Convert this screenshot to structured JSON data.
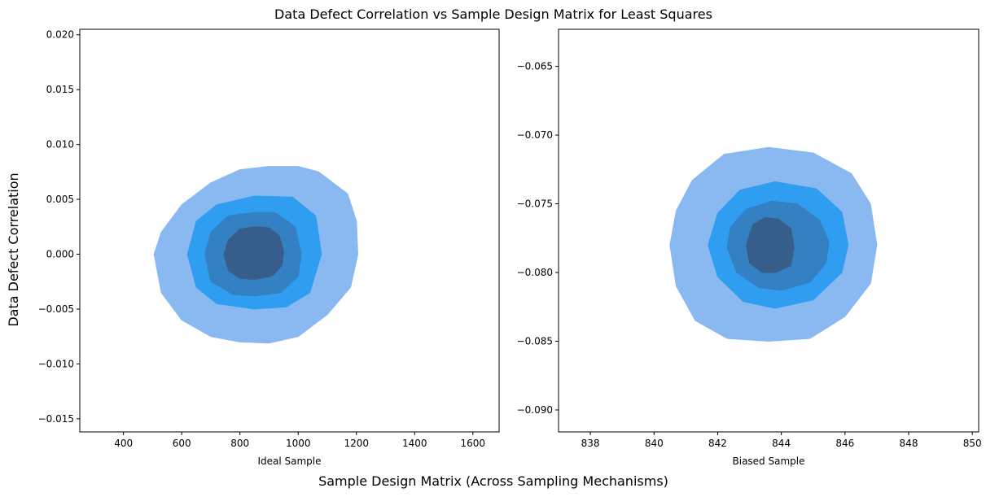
{
  "figure": {
    "suptitle": "Data Defect Correlation vs Sample Design Matrix for Least Squares",
    "supxlabel": "Sample Design Matrix (Across Sampling Mechanisms)",
    "supylabel": "Data Defect Correlation"
  },
  "chart_data": [
    {
      "type": "contour",
      "kind": "filled bivariate KDE",
      "xlabel": "Ideal Sample",
      "ylabel": "",
      "xlim": [
        250,
        1690
      ],
      "ylim": [
        -0.0162,
        0.0205
      ],
      "xticks": [
        400,
        600,
        800,
        1000,
        1200,
        1400,
        1600
      ],
      "xtick_labels": [
        "400",
        "600",
        "800",
        "1000",
        "1200",
        "1400",
        "1600"
      ],
      "yticks": [
        -0.015,
        -0.01,
        -0.005,
        0.0,
        0.005,
        0.01,
        0.015,
        0.02
      ],
      "ytick_labels": [
        "−0.015",
        "−0.010",
        "−0.005",
        "0.000",
        "0.005",
        "0.010",
        "0.015",
        "0.020"
      ],
      "grid": false,
      "levels": [
        {
          "color": "#8ab8f0",
          "x_range": [
            505,
            1205
          ],
          "y_range": [
            -0.0081,
            0.008
          ],
          "points": [
            [
              530,
              -0.0035
            ],
            [
              600,
              -0.006
            ],
            [
              700,
              -0.0075
            ],
            [
              800,
              -0.008
            ],
            [
              900,
              -0.0081
            ],
            [
              1000,
              -0.0075
            ],
            [
              1100,
              -0.0055
            ],
            [
              1180,
              -0.003
            ],
            [
              1205,
              0.0
            ],
            [
              1200,
              0.003
            ],
            [
              1170,
              0.0055
            ],
            [
              1120,
              0.0065
            ],
            [
              1070,
              0.0075
            ],
            [
              1000,
              0.008
            ],
            [
              900,
              0.008
            ],
            [
              800,
              0.0077
            ],
            [
              700,
              0.0065
            ],
            [
              600,
              0.0045
            ],
            [
              530,
              0.002
            ],
            [
              505,
              0.0
            ]
          ]
        },
        {
          "color": "#2f9ef0",
          "x_range": [
            620,
            1080
          ],
          "y_range": [
            -0.005,
            0.0053
          ],
          "points": [
            [
              620,
              0.0
            ],
            [
              650,
              -0.003
            ],
            [
              720,
              -0.0045
            ],
            [
              850,
              -0.005
            ],
            [
              960,
              -0.0048
            ],
            [
              1040,
              -0.0035
            ],
            [
              1080,
              0.0
            ],
            [
              1060,
              0.0035
            ],
            [
              980,
              0.0052
            ],
            [
              850,
              0.0053
            ],
            [
              720,
              0.0045
            ],
            [
              650,
              0.003
            ]
          ]
        },
        {
          "color": "#3380c2",
          "x_range": [
            680,
            1010
          ],
          "y_range": [
            -0.0038,
            0.0038
          ],
          "points": [
            [
              680,
              0.0
            ],
            [
              700,
              -0.0025
            ],
            [
              780,
              -0.0037
            ],
            [
              850,
              -0.0038
            ],
            [
              940,
              -0.0035
            ],
            [
              1000,
              -0.002
            ],
            [
              1010,
              0.0
            ],
            [
              990,
              0.0025
            ],
            [
              920,
              0.0038
            ],
            [
              850,
              0.0038
            ],
            [
              760,
              0.0035
            ],
            [
              700,
              0.002
            ]
          ]
        },
        {
          "color": "#375e8b",
          "x_range": [
            745,
            950
          ],
          "y_range": [
            -0.0023,
            0.0025
          ],
          "points": [
            [
              745,
              0.0
            ],
            [
              760,
              -0.0015
            ],
            [
              800,
              -0.0022
            ],
            [
              850,
              -0.0023
            ],
            [
              910,
              -0.002
            ],
            [
              945,
              -0.001
            ],
            [
              950,
              0.0003
            ],
            [
              935,
              0.0017
            ],
            [
              900,
              0.0024
            ],
            [
              850,
              0.0025
            ],
            [
              800,
              0.0023
            ],
            [
              760,
              0.0013
            ]
          ]
        }
      ]
    },
    {
      "type": "contour",
      "kind": "filled bivariate KDE",
      "xlabel": "Biased Sample",
      "ylabel": "",
      "xlim": [
        837.0,
        850.2
      ],
      "ylim": [
        -0.0916,
        -0.0623
      ],
      "xticks": [
        838,
        840,
        842,
        844,
        846,
        848,
        850
      ],
      "xtick_labels": [
        "838",
        "840",
        "842",
        "844",
        "846",
        "848",
        "850"
      ],
      "yticks": [
        -0.09,
        -0.085,
        -0.08,
        -0.075,
        -0.07,
        -0.065
      ],
      "ytick_labels": [
        "−0.090",
        "−0.085",
        "−0.080",
        "−0.075",
        "−0.070",
        "−0.065"
      ],
      "grid": false,
      "levels": [
        {
          "color": "#8ab8f0",
          "x_range": [
            840.5,
            847.0
          ],
          "y_range": [
            -0.085,
            -0.0709
          ],
          "points": [
            [
              840.5,
              -0.078
            ],
            [
              840.7,
              -0.081
            ],
            [
              841.3,
              -0.0835
            ],
            [
              842.3,
              -0.0848
            ],
            [
              843.6,
              -0.085
            ],
            [
              844.9,
              -0.0848
            ],
            [
              846.0,
              -0.0832
            ],
            [
              846.8,
              -0.0808
            ],
            [
              847.0,
              -0.078
            ],
            [
              846.8,
              -0.075
            ],
            [
              846.2,
              -0.0728
            ],
            [
              845.0,
              -0.0713
            ],
            [
              843.6,
              -0.0709
            ],
            [
              842.2,
              -0.0714
            ],
            [
              841.2,
              -0.0733
            ],
            [
              840.7,
              -0.0755
            ]
          ]
        },
        {
          "color": "#2f9ef0",
          "x_range": [
            841.7,
            846.1
          ],
          "y_range": [
            -0.0826,
            -0.0734
          ],
          "points": [
            [
              841.7,
              -0.078
            ],
            [
              842.0,
              -0.0803
            ],
            [
              842.8,
              -0.0821
            ],
            [
              843.8,
              -0.0826
            ],
            [
              845.0,
              -0.082
            ],
            [
              845.9,
              -0.08
            ],
            [
              846.1,
              -0.078
            ],
            [
              845.9,
              -0.0756
            ],
            [
              845.1,
              -0.0739
            ],
            [
              843.8,
              -0.0734
            ],
            [
              842.7,
              -0.074
            ],
            [
              842.0,
              -0.0757
            ]
          ]
        },
        {
          "color": "#3380c2",
          "x_range": [
            842.3,
            845.5
          ],
          "y_range": [
            -0.0813,
            -0.0748
          ],
          "points": [
            [
              842.3,
              -0.0782
            ],
            [
              842.6,
              -0.08
            ],
            [
              843.3,
              -0.0811
            ],
            [
              844.0,
              -0.0813
            ],
            [
              844.9,
              -0.0807
            ],
            [
              845.4,
              -0.0793
            ],
            [
              845.5,
              -0.0778
            ],
            [
              845.2,
              -0.0762
            ],
            [
              844.5,
              -0.075
            ],
            [
              843.7,
              -0.0748
            ],
            [
              842.9,
              -0.0754
            ],
            [
              842.4,
              -0.0767
            ]
          ]
        },
        {
          "color": "#375e8b",
          "x_range": [
            842.9,
            844.4
          ],
          "y_range": [
            -0.08,
            -0.076
          ],
          "points": [
            [
              842.9,
              -0.078
            ],
            [
              843.0,
              -0.0793
            ],
            [
              843.4,
              -0.08
            ],
            [
              843.8,
              -0.08
            ],
            [
              844.3,
              -0.0795
            ],
            [
              844.4,
              -0.0782
            ],
            [
              844.3,
              -0.0768
            ],
            [
              843.9,
              -0.0761
            ],
            [
              843.5,
              -0.076
            ],
            [
              843.1,
              -0.0765
            ]
          ]
        }
      ]
    }
  ]
}
